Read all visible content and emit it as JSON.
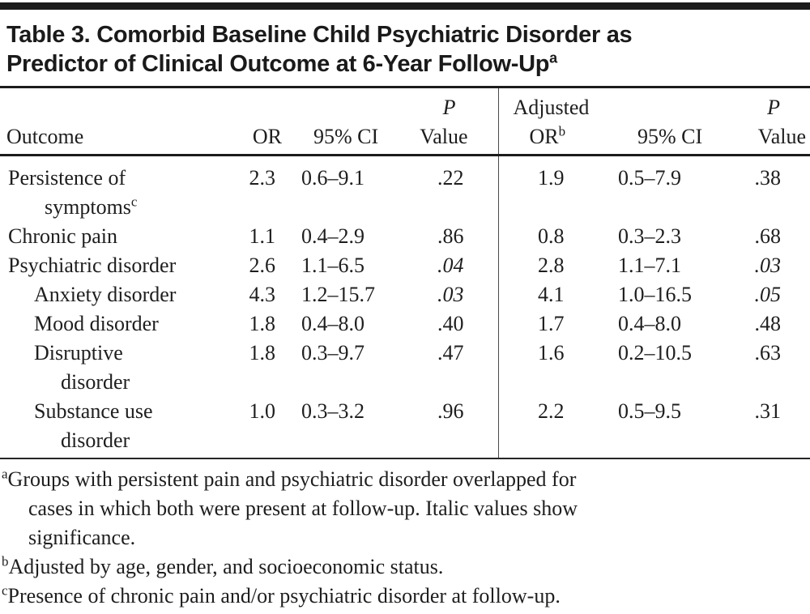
{
  "title": {
    "line1": "Table 3. Comorbid Baseline Child Psychiatric Disorder as",
    "line2": "Predictor of Clinical Outcome at 6-Year Follow-Up",
    "superscript": "a"
  },
  "table": {
    "headers": {
      "outcome": "Outcome",
      "or": "OR",
      "ci": "95% CI",
      "p_top": "P",
      "p_bottom": "Value",
      "adjusted_top": "Adjusted",
      "adjusted_bottom": "OR",
      "adjusted_sup": "b",
      "ci2": "95% CI",
      "p2_top": "P",
      "p2_bottom": "Value"
    },
    "rows": [
      {
        "outcome_line1": "Persistence of",
        "outcome_line2": "symptoms",
        "outcome_sup": "c",
        "indent": false,
        "or": "2.3",
        "ci": "0.6–9.1",
        "p": ".22",
        "p_significant": false,
        "adj_or": "1.9",
        "adj_ci": "0.5–7.9",
        "adj_p": ".38",
        "adj_p_significant": false
      },
      {
        "outcome_line1": "Chronic pain",
        "indent": false,
        "or": "1.1",
        "ci": "0.4–2.9",
        "p": ".86",
        "p_significant": false,
        "adj_or": "0.8",
        "adj_ci": "0.3–2.3",
        "adj_p": ".68",
        "adj_p_significant": false
      },
      {
        "outcome_line1": "Psychiatric disorder",
        "indent": false,
        "or": "2.6",
        "ci": "1.1–6.5",
        "p": ".04",
        "p_significant": true,
        "adj_or": "2.8",
        "adj_ci": "1.1–7.1",
        "adj_p": ".03",
        "adj_p_significant": true
      },
      {
        "outcome_line1": "Anxiety disorder",
        "indent": true,
        "or": "4.3",
        "ci": "1.2–15.7",
        "p": ".03",
        "p_significant": true,
        "adj_or": "4.1",
        "adj_ci": "1.0–16.5",
        "adj_p": ".05",
        "adj_p_significant": true
      },
      {
        "outcome_line1": "Mood disorder",
        "indent": true,
        "or": "1.8",
        "ci": "0.4–8.0",
        "p": ".40",
        "p_significant": false,
        "adj_or": "1.7",
        "adj_ci": "0.4–8.0",
        "adj_p": ".48",
        "adj_p_significant": false
      },
      {
        "outcome_line1": "Disruptive",
        "outcome_line2": "disorder",
        "indent": true,
        "or": "1.8",
        "ci": "0.3–9.7",
        "p": ".47",
        "p_significant": false,
        "adj_or": "1.6",
        "adj_ci": "0.2–10.5",
        "adj_p": ".63",
        "adj_p_significant": false
      },
      {
        "outcome_line1": "Substance use",
        "outcome_line2": "disorder",
        "indent": true,
        "or": "1.0",
        "ci": "0.3–3.2",
        "p": ".96",
        "p_significant": false,
        "adj_or": "2.2",
        "adj_ci": "0.5–9.5",
        "adj_p": ".31",
        "adj_p_significant": false
      }
    ]
  },
  "footnotes": [
    {
      "marker": "a",
      "lines": [
        "Groups with persistent pain and psychiatric disorder overlapped for",
        "cases in which both were present at follow-up. Italic values show",
        "significance."
      ]
    },
    {
      "marker": "b",
      "lines": [
        "Adjusted by age, gender, and socioeconomic status."
      ]
    },
    {
      "marker": "c",
      "lines": [
        "Presence of chronic pain and/or psychiatric disorder at follow-up."
      ]
    }
  ],
  "colors": {
    "text": "#1e1e1e",
    "rule": "#1c1c1c",
    "divider": "#4a4a4a",
    "bottom_gray": "#9a9a9a"
  }
}
